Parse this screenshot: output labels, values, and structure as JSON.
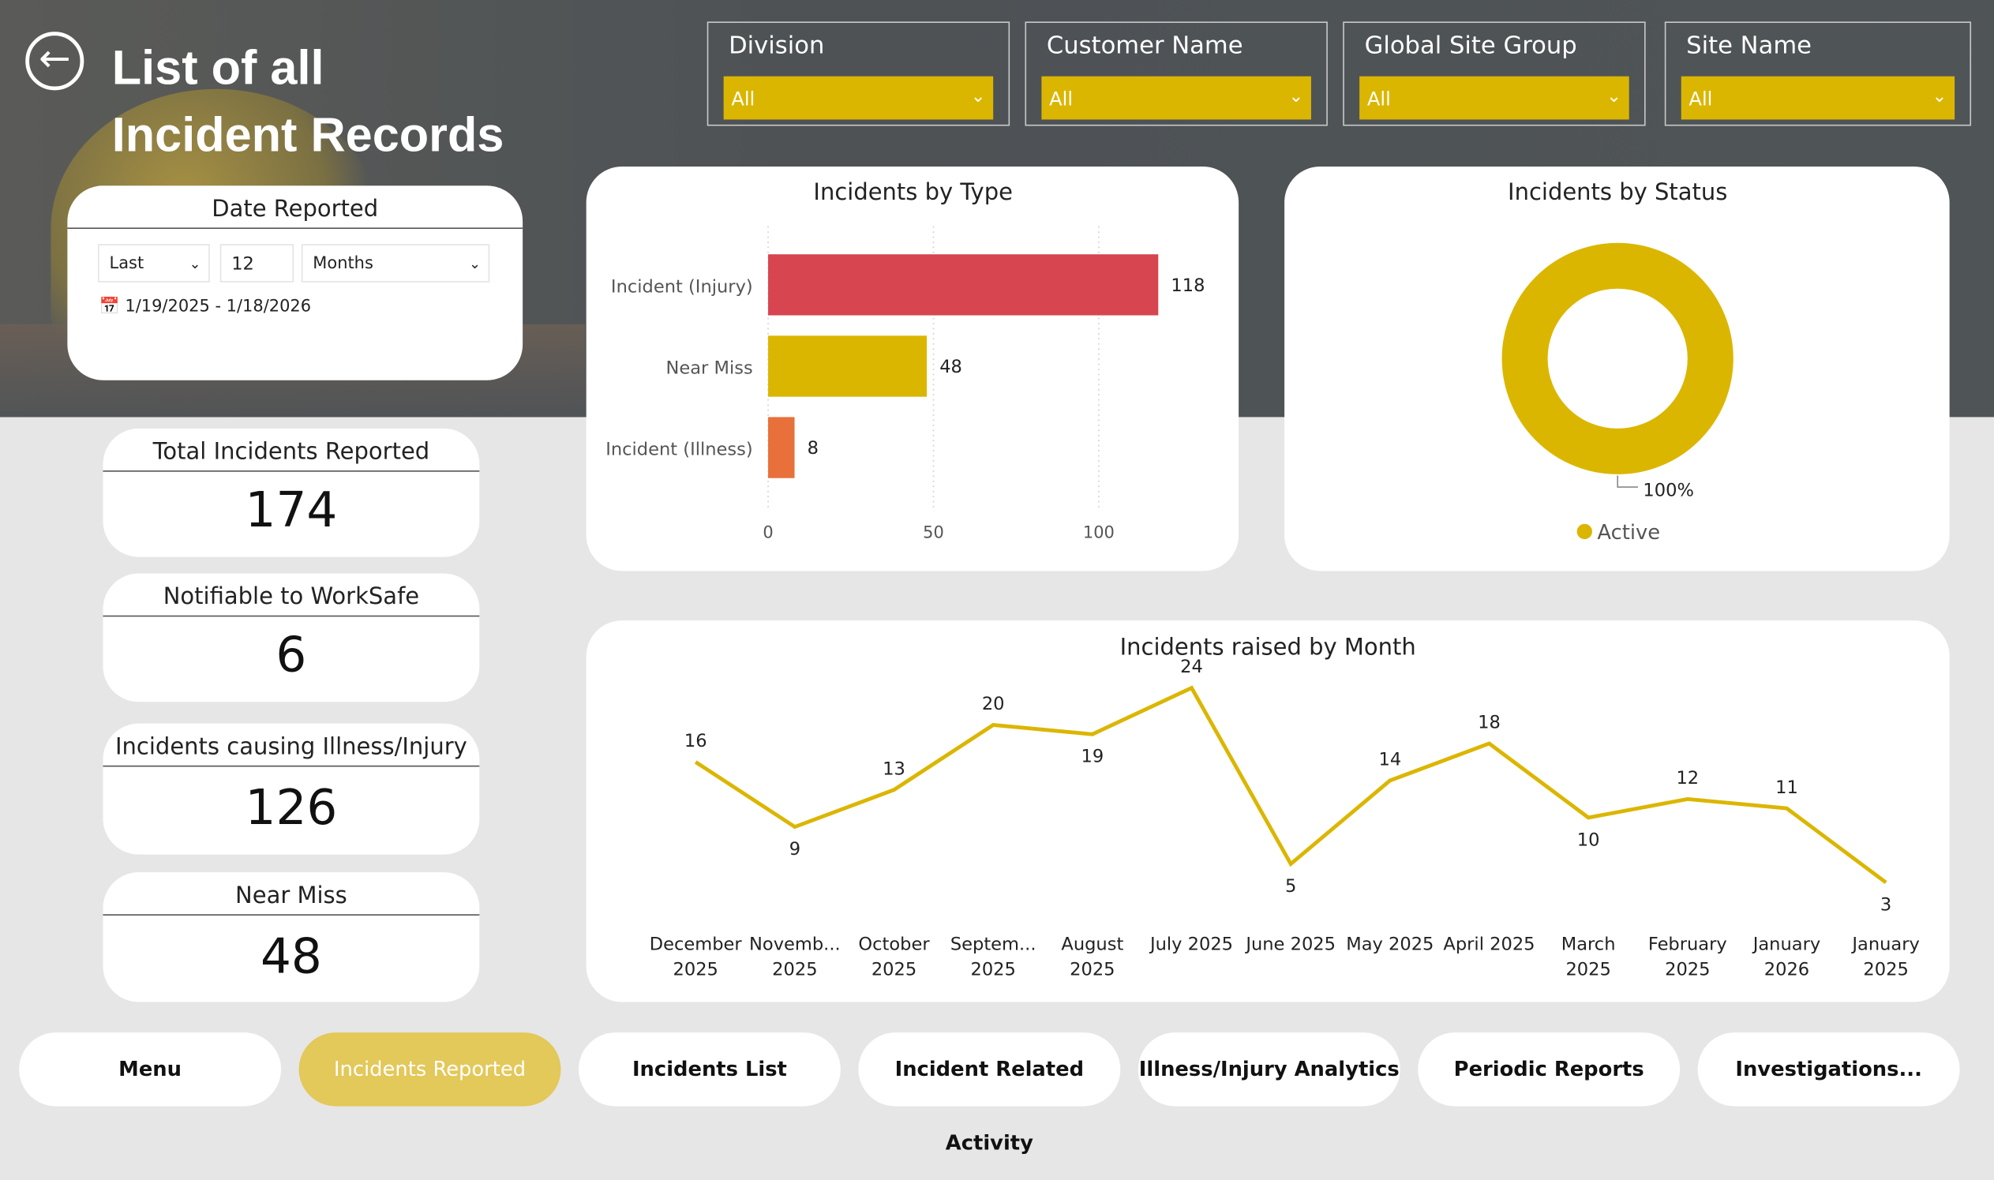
{
  "header": {
    "title_line1": "List of all",
    "title_line2": "Incident Records",
    "back_icon": "arrow-left-circle-icon"
  },
  "filters": [
    {
      "label": "Division",
      "value": "All"
    },
    {
      "label": "Customer Name",
      "value": "All"
    },
    {
      "label": "Global Site Group",
      "value": "All"
    },
    {
      "label": "Site Name",
      "value": "All"
    }
  ],
  "date_filter": {
    "title": "Date Reported",
    "mode": "Last",
    "count": "12",
    "unit": "Months",
    "range": "1/19/2025 - 1/18/2026"
  },
  "kpis": [
    {
      "label": "Total Incidents Reported",
      "value": "174"
    },
    {
      "label": "Notifiable to WorkSafe",
      "value": "6"
    },
    {
      "label": "Incidents causing Illness/Injury",
      "value": "126"
    },
    {
      "label": "Near Miss",
      "value": "48"
    }
  ],
  "colors": {
    "accent": "#dbb600",
    "injury": "#d64550",
    "illness": "#e8703a",
    "header": "#4f5356"
  },
  "nav": [
    {
      "label": "Menu"
    },
    {
      "label": "Incidents Reported",
      "active": true
    },
    {
      "label": "Incidents List"
    },
    {
      "label": "Incident Related Activity"
    },
    {
      "label": "Illness/Injury Analytics"
    },
    {
      "label": "Periodic Reports"
    },
    {
      "label": "Investigations..."
    }
  ],
  "chart_data": [
    {
      "type": "bar",
      "orientation": "horizontal",
      "title": "Incidents by Type",
      "categories": [
        "Incident (Injury)",
        "Near Miss",
        "Incident (Illness)"
      ],
      "values": [
        118,
        48,
        8
      ],
      "xlim": [
        0,
        120
      ],
      "xticks": [
        "0",
        "50",
        "100"
      ],
      "grid": true
    },
    {
      "type": "pie",
      "variant": "donut",
      "title": "Incidents by Status",
      "categories": [
        "Active"
      ],
      "values": [
        100
      ],
      "labels": [
        "100%"
      ],
      "legend": "bottom"
    },
    {
      "type": "line",
      "title": "Incidents raised by Month",
      "categories": [
        [
          "December",
          "2025"
        ],
        [
          "Novemb...",
          "2025"
        ],
        [
          "October",
          "2025"
        ],
        [
          "Septem...",
          "2025"
        ],
        [
          "August",
          "2025"
        ],
        [
          "July 2025",
          ""
        ],
        [
          "June 2025",
          ""
        ],
        [
          "May 2025",
          ""
        ],
        [
          "April 2025",
          ""
        ],
        [
          "March",
          "2025"
        ],
        [
          "February",
          "2025"
        ],
        [
          "January",
          "2026"
        ],
        [
          "January",
          "2025"
        ]
      ],
      "values": [
        16,
        9,
        13,
        20,
        19,
        24,
        5,
        14,
        18,
        10,
        12,
        11,
        3
      ]
    }
  ]
}
